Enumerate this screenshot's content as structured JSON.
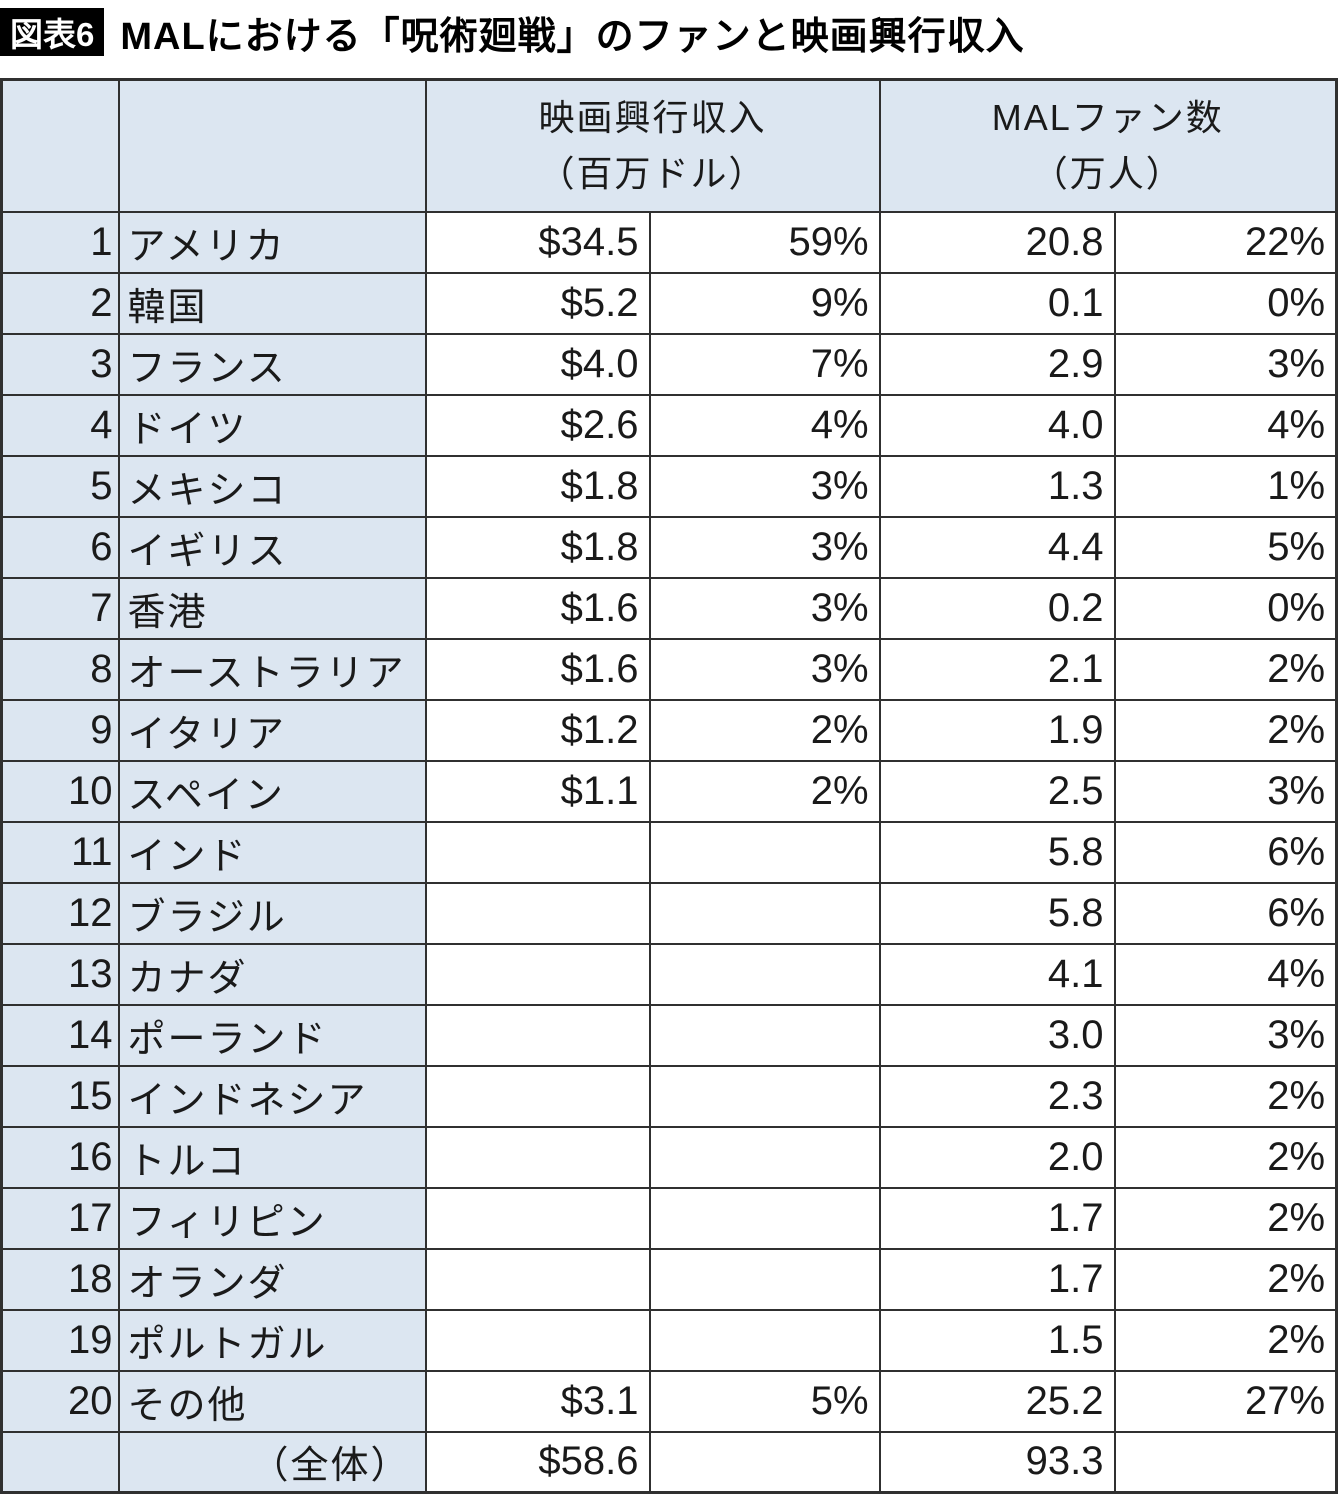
{
  "figure": {
    "badge": "図表6",
    "title": "MALにおける「呪術廻戦」のファンと映画興行収入"
  },
  "colors": {
    "header_bg": "#dce6f1",
    "border": "#303030",
    "badge_bg": "#000000",
    "badge_text": "#ffffff"
  },
  "chart_data": {
    "type": "table",
    "figure_label": "図表6",
    "title": "MALにおける「呪術廻戦」のファンと映画興行収入",
    "column_groups": [
      {
        "line1": "映画興行収入",
        "line2": "（百万ドル）"
      },
      {
        "line1": "MALファン数",
        "line2": "（万人）"
      }
    ],
    "rows": [
      {
        "rank": "1",
        "country": "アメリカ",
        "revenue": "$34.5",
        "revenue_pct": "59%",
        "fans": "20.8",
        "fans_pct": "22%"
      },
      {
        "rank": "2",
        "country": "韓国",
        "revenue": "$5.2",
        "revenue_pct": "9%",
        "fans": "0.1",
        "fans_pct": "0%"
      },
      {
        "rank": "3",
        "country": "フランス",
        "revenue": "$4.0",
        "revenue_pct": "7%",
        "fans": "2.9",
        "fans_pct": "3%"
      },
      {
        "rank": "4",
        "country": "ドイツ",
        "revenue": "$2.6",
        "revenue_pct": "4%",
        "fans": "4.0",
        "fans_pct": "4%"
      },
      {
        "rank": "5",
        "country": "メキシコ",
        "revenue": "$1.8",
        "revenue_pct": "3%",
        "fans": "1.3",
        "fans_pct": "1%"
      },
      {
        "rank": "6",
        "country": "イギリス",
        "revenue": "$1.8",
        "revenue_pct": "3%",
        "fans": "4.4",
        "fans_pct": "5%"
      },
      {
        "rank": "7",
        "country": "香港",
        "revenue": "$1.6",
        "revenue_pct": "3%",
        "fans": "0.2",
        "fans_pct": "0%"
      },
      {
        "rank": "8",
        "country": "オーストラリア",
        "revenue": "$1.6",
        "revenue_pct": "3%",
        "fans": "2.1",
        "fans_pct": "2%"
      },
      {
        "rank": "9",
        "country": "イタリア",
        "revenue": "$1.2",
        "revenue_pct": "2%",
        "fans": "1.9",
        "fans_pct": "2%"
      },
      {
        "rank": "10",
        "country": "スペイン",
        "revenue": "$1.1",
        "revenue_pct": "2%",
        "fans": "2.5",
        "fans_pct": "3%"
      },
      {
        "rank": "11",
        "country": "インド",
        "revenue": "",
        "revenue_pct": "",
        "fans": "5.8",
        "fans_pct": "6%"
      },
      {
        "rank": "12",
        "country": "ブラジル",
        "revenue": "",
        "revenue_pct": "",
        "fans": "5.8",
        "fans_pct": "6%"
      },
      {
        "rank": "13",
        "country": "カナダ",
        "revenue": "",
        "revenue_pct": "",
        "fans": "4.1",
        "fans_pct": "4%"
      },
      {
        "rank": "14",
        "country": "ポーランド",
        "revenue": "",
        "revenue_pct": "",
        "fans": "3.0",
        "fans_pct": "3%"
      },
      {
        "rank": "15",
        "country": "インドネシア",
        "revenue": "",
        "revenue_pct": "",
        "fans": "2.3",
        "fans_pct": "2%"
      },
      {
        "rank": "16",
        "country": "トルコ",
        "revenue": "",
        "revenue_pct": "",
        "fans": "2.0",
        "fans_pct": "2%"
      },
      {
        "rank": "17",
        "country": "フィリピン",
        "revenue": "",
        "revenue_pct": "",
        "fans": "1.7",
        "fans_pct": "2%"
      },
      {
        "rank": "18",
        "country": "オランダ",
        "revenue": "",
        "revenue_pct": "",
        "fans": "1.7",
        "fans_pct": "2%"
      },
      {
        "rank": "19",
        "country": "ポルトガル",
        "revenue": "",
        "revenue_pct": "",
        "fans": "1.5",
        "fans_pct": "2%"
      },
      {
        "rank": "20",
        "country": "その他",
        "revenue": "$3.1",
        "revenue_pct": "5%",
        "fans": "25.2",
        "fans_pct": "27%"
      }
    ],
    "total": {
      "rank": "",
      "label": "（全体）",
      "revenue": "$58.6",
      "revenue_pct": "",
      "fans": "93.3",
      "fans_pct": ""
    }
  }
}
